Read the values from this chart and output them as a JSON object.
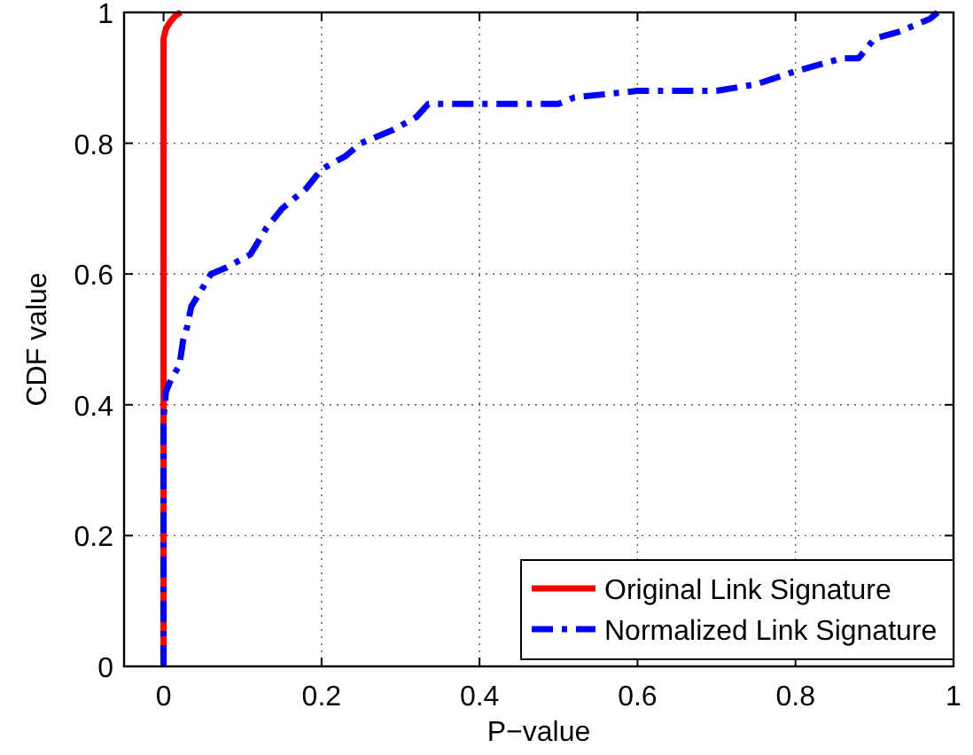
{
  "chart_data": {
    "type": "line",
    "xlabel": "P−value",
    "ylabel": "CDF value",
    "xlim": [
      -0.05,
      1
    ],
    "xticks": [
      0,
      0.2,
      0.4,
      0.6,
      0.8,
      1
    ],
    "ylim": [
      0,
      1
    ],
    "yticks": [
      0,
      0.2,
      0.4,
      0.6,
      0.8,
      1
    ],
    "grid": true,
    "legend": "bottom right",
    "marker": "none",
    "series": [
      {
        "name": "Original Link Signature",
        "color": "#ff0000",
        "line_style": "solid",
        "x": [
          0,
          0,
          0.003,
          0.008,
          0.015,
          0.022
        ],
        "values": [
          0,
          0.96,
          0.975,
          0.985,
          0.995,
          1
        ]
      },
      {
        "name": "Normalized Link Signature",
        "color": "#0000ff",
        "line_style": "dashdot",
        "x": [
          0,
          0,
          0.003,
          0.01,
          0.02,
          0.025,
          0.03,
          0.035,
          0.05,
          0.06,
          0.08,
          0.11,
          0.13,
          0.15,
          0.18,
          0.2,
          0.23,
          0.25,
          0.29,
          0.32,
          0.335,
          0.5,
          0.52,
          0.6,
          0.7,
          0.75,
          0.8,
          0.86,
          0.88,
          0.9,
          0.93,
          0.97,
          0.98
        ],
        "values": [
          0,
          0.38,
          0.42,
          0.44,
          0.46,
          0.5,
          0.52,
          0.55,
          0.58,
          0.6,
          0.61,
          0.63,
          0.67,
          0.7,
          0.73,
          0.76,
          0.78,
          0.8,
          0.82,
          0.84,
          0.86,
          0.86,
          0.87,
          0.88,
          0.88,
          0.89,
          0.91,
          0.93,
          0.93,
          0.96,
          0.97,
          0.99,
          1
        ]
      }
    ]
  }
}
